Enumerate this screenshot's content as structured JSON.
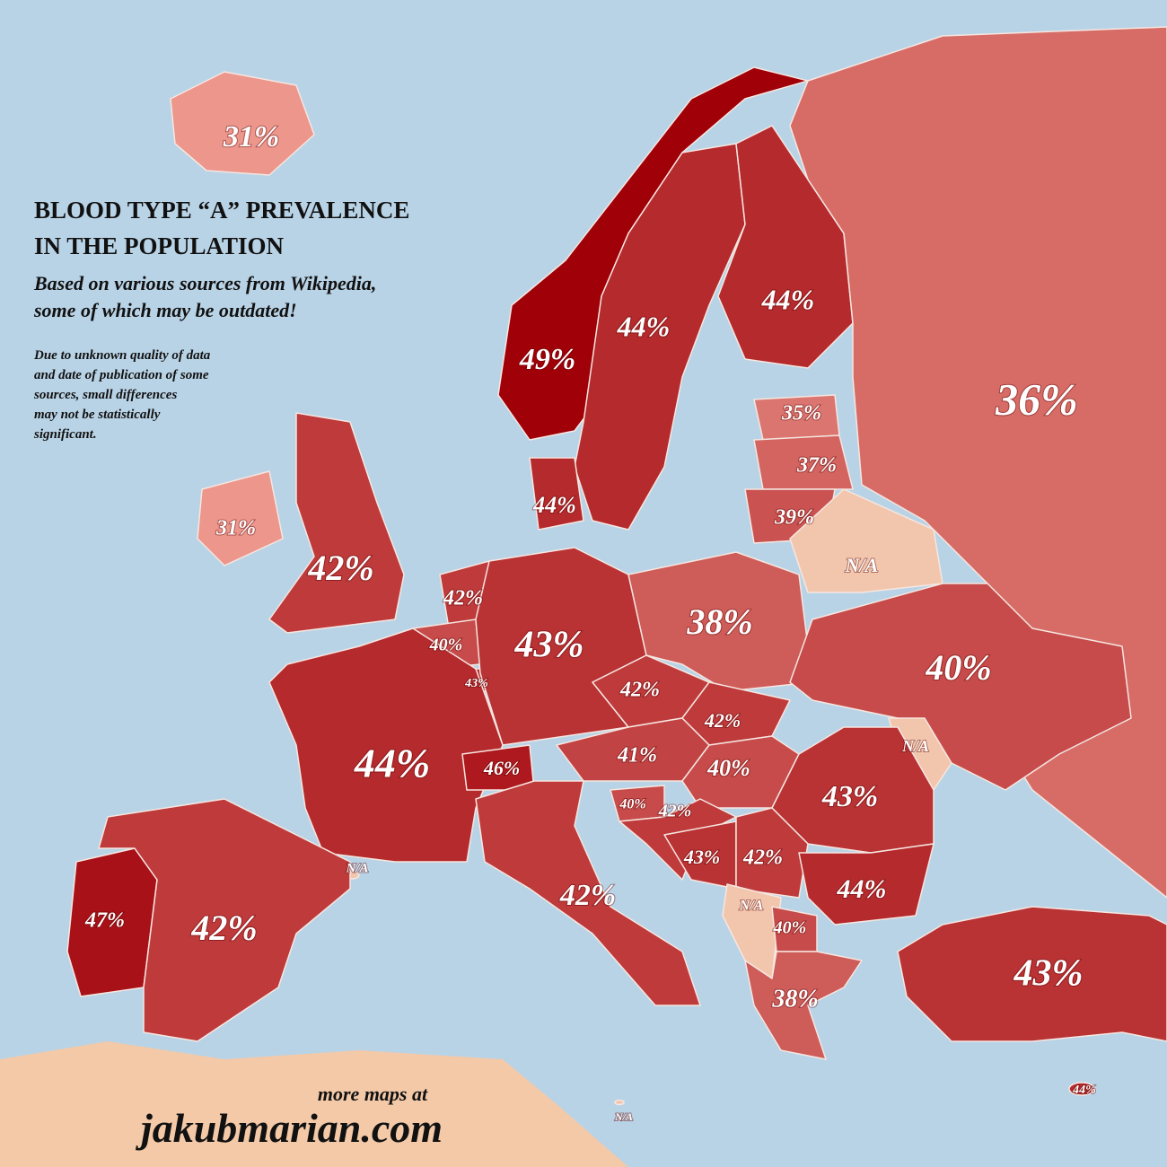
{
  "title": [
    "BLOOD TYPE “A” PREVALENCE",
    "IN THE POPULATION"
  ],
  "subtitle": [
    "Based on various sources from Wikipedia,",
    "some of which may be outdated!"
  ],
  "note": [
    "Due to unknown quality of data",
    "and date of publication of some",
    "sources, small differences",
    "may not be statistically",
    "significant."
  ],
  "footer": {
    "line": "more maps at",
    "site": "jakubmarian.com"
  },
  "regions": [
    {
      "value": 31,
      "label": "31%"
    },
    {
      "value": 49,
      "label": "49%"
    },
    {
      "value": 44,
      "label": "44%"
    },
    {
      "value": 44,
      "label": "44%"
    },
    {
      "value": 36,
      "label": "36%"
    },
    {
      "value": 35,
      "label": "35%"
    },
    {
      "value": 37,
      "label": "37%"
    },
    {
      "value": 39,
      "label": "39%"
    },
    {
      "label": "N/A"
    },
    {
      "value": 31,
      "label": "31%"
    },
    {
      "value": 42,
      "label": "42%"
    },
    {
      "value": 44,
      "label": "44%"
    },
    {
      "value": 42,
      "label": "42%"
    },
    {
      "value": 40,
      "label": "40%"
    },
    {
      "value": 43,
      "label": "43%"
    },
    {
      "value": 43,
      "label": "43%"
    },
    {
      "value": 38,
      "label": "38%"
    },
    {
      "value": 40,
      "label": "40%"
    },
    {
      "value": 42,
      "label": "42%"
    },
    {
      "value": 42,
      "label": "42%"
    },
    {
      "label": "N/A"
    },
    {
      "value": 44,
      "label": "44%"
    },
    {
      "value": 46,
      "label": "46%"
    },
    {
      "value": 41,
      "label": "41%"
    },
    {
      "value": 40,
      "label": "40%"
    },
    {
      "value": 43,
      "label": "43%"
    },
    {
      "value": 40,
      "label": "40%"
    },
    {
      "value": 42,
      "label": "42%"
    },
    {
      "value": 43,
      "label": "43%"
    },
    {
      "value": 42,
      "label": "42%"
    },
    {
      "value": 44,
      "label": "44%"
    },
    {
      "label": "N/A"
    },
    {
      "value": 47,
      "label": "47%"
    },
    {
      "value": 42,
      "label": "42%"
    },
    {
      "value": 42,
      "label": "42%"
    },
    {
      "label": "N/A"
    },
    {
      "value": 40,
      "label": "40%"
    },
    {
      "value": 38,
      "label": "38%"
    },
    {
      "value": 43,
      "label": "43%"
    },
    {
      "value": 44,
      "label": "44%"
    },
    {
      "label": "N/A"
    }
  ]
}
